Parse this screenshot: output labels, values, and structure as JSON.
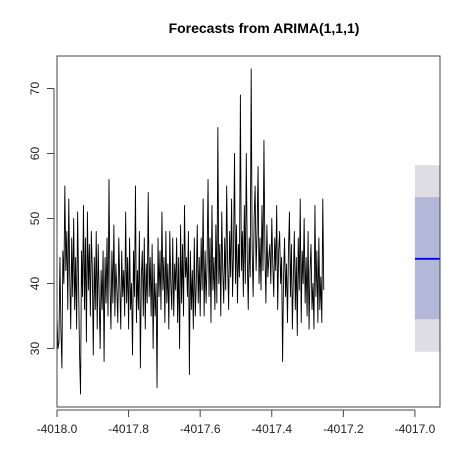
{
  "chart_data": {
    "type": "line",
    "title": "Forecasts from ARIMA(1,1,1)",
    "xlabel": "",
    "ylabel": "",
    "xlim": [
      -4018.0,
      -4016.93
    ],
    "ylim": [
      21,
      75
    ],
    "x_ticks": [
      -4018.0,
      -4017.8,
      -4017.6,
      -4017.4,
      -4017.2,
      -4017.0
    ],
    "x_tick_labels": [
      "-4018.0",
      "-4017.8",
      "-4017.6",
      "-4017.4",
      "-4017.2",
      "-4017.0"
    ],
    "y_ticks": [
      30,
      40,
      50,
      60,
      70
    ],
    "y_tick_labels": [
      "30",
      "40",
      "50",
      "60",
      "70"
    ],
    "grid": false,
    "legend": "none",
    "observed": {
      "x_start": -4018.0,
      "x_step": 0.00274,
      "values": [
        35,
        30,
        31,
        44,
        33,
        27,
        45,
        40,
        55,
        42,
        48,
        36,
        53,
        41,
        33,
        47,
        38,
        50,
        36,
        44,
        33,
        51,
        40,
        29,
        23,
        45,
        38,
        52,
        36,
        47,
        31,
        51,
        39,
        46,
        35,
        48,
        42,
        29,
        44,
        36,
        48,
        33,
        46,
        38,
        30,
        42,
        36,
        45,
        28,
        44,
        37,
        47,
        35,
        56,
        40,
        33,
        45,
        37,
        49,
        35,
        43,
        39,
        34,
        47,
        40,
        33,
        45,
        38,
        42,
        35,
        51,
        37,
        44,
        33,
        47,
        36,
        40,
        29,
        45,
        38,
        55,
        34,
        42,
        36,
        48,
        27,
        41,
        45,
        35,
        47,
        33,
        43,
        37,
        54,
        38,
        44,
        35,
        46,
        30,
        43,
        35,
        40,
        24,
        47,
        38,
        45,
        36,
        51,
        39,
        44,
        34,
        48,
        37,
        43,
        33,
        48,
        40,
        36,
        47,
        35,
        43,
        39,
        47,
        34,
        44,
        30,
        49,
        37,
        46,
        35,
        52,
        41,
        44,
        38,
        48,
        26,
        45,
        36,
        42,
        33,
        47,
        35,
        40,
        49,
        37,
        44,
        35,
        47,
        39,
        53,
        35,
        45,
        37,
        43,
        56,
        38,
        47,
        34,
        52,
        39,
        44,
        36,
        49,
        37,
        64,
        40,
        46,
        35,
        51,
        42,
        37,
        47,
        39,
        55,
        43,
        36,
        48,
        41,
        53,
        38,
        45,
        60,
        40,
        49,
        37,
        46,
        41,
        69,
        42,
        48,
        38,
        52,
        40,
        60,
        44,
        36,
        47,
        41,
        73,
        45,
        38,
        50,
        55,
        42,
        48,
        58,
        40,
        47,
        39,
        52,
        42,
        62,
        45,
        37,
        49,
        41,
        44,
        46,
        40,
        50,
        43,
        38,
        47,
        42,
        52,
        36,
        45,
        48,
        40,
        44,
        28,
        41,
        47,
        38,
        43,
        34,
        45,
        51,
        38,
        46,
        33,
        41,
        48,
        36,
        44,
        32,
        47,
        39,
        53,
        34,
        45,
        40,
        50,
        37,
        44,
        35,
        48,
        33,
        42,
        46,
        36,
        40,
        33,
        52,
        38,
        45,
        34,
        47,
        36,
        41,
        34,
        53,
        39
      ]
    },
    "forecast": {
      "x": [
        -4017.0,
        -4016.93
      ],
      "mean": 43.8,
      "band_80": [
        34.5,
        53.3
      ],
      "band_95": [
        29.5,
        58.2
      ],
      "colors": {
        "mean": "#0000ff",
        "band_80": "#b3b8d9",
        "band_95": "#dddde3"
      }
    },
    "colors": {
      "observed": "#000000",
      "axis": "#444444"
    }
  }
}
